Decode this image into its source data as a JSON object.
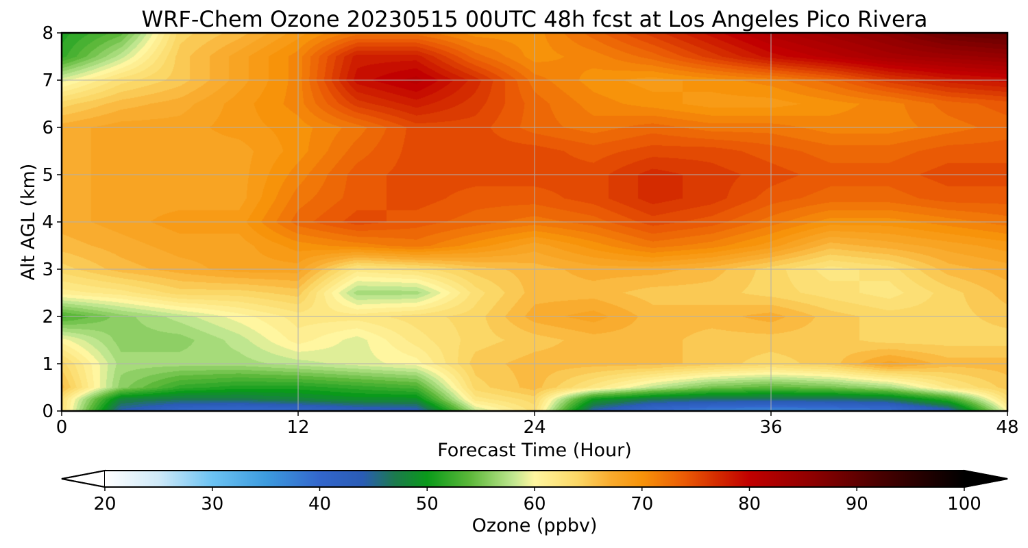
{
  "chart_data": {
    "type": "heatmap",
    "title": "WRF-Chem Ozone  20230515 00UTC 48h fcst at Los Angeles Pico Rivera",
    "xlabel": "Forecast Time (Hour)",
    "ylabel": "Alt AGL (km)",
    "xlim": [
      0,
      48
    ],
    "ylim": [
      0,
      8
    ],
    "xticks": [
      0,
      12,
      24,
      36,
      48
    ],
    "yticks": [
      0,
      1,
      2,
      3,
      4,
      5,
      6,
      7,
      8
    ],
    "grid": true,
    "x_hours": [
      0,
      3,
      6,
      9,
      12,
      15,
      18,
      21,
      24,
      27,
      30,
      33,
      36,
      39,
      42,
      45,
      48
    ],
    "y_km": [
      0,
      0.25,
      0.5,
      1,
      1.5,
      2,
      2.5,
      3,
      3.5,
      4,
      4.5,
      5,
      5.5,
      6,
      6.5,
      7,
      7.5,
      8
    ],
    "ozone_ppbv": [
      [
        63,
        44,
        40,
        39,
        40,
        42,
        43,
        58,
        63,
        44,
        39,
        37,
        36,
        37,
        38,
        43,
        60
      ],
      [
        63,
        48,
        47,
        47,
        48,
        49,
        49,
        62,
        64,
        50,
        47,
        46,
        46,
        46,
        47,
        52,
        63
      ],
      [
        66,
        56,
        52,
        51,
        51,
        52,
        53,
        64,
        66,
        62,
        58,
        55,
        54,
        55,
        57,
        62,
        65
      ],
      [
        64,
        57,
        57,
        57,
        58,
        59,
        60,
        65,
        66,
        66,
        66,
        65,
        64,
        65,
        68,
        66,
        66
      ],
      [
        60,
        56,
        56,
        58,
        61,
        59,
        62,
        64,
        65,
        66,
        66,
        65,
        65,
        65,
        64,
        64,
        64
      ],
      [
        53,
        56,
        58,
        60,
        62,
        62,
        63,
        64,
        67,
        68,
        66,
        66,
        67,
        65,
        64,
        64,
        65
      ],
      [
        61,
        62,
        64,
        64,
        65,
        57,
        57,
        63,
        66,
        66,
        65,
        65,
        64,
        63,
        62,
        64,
        66
      ],
      [
        64,
        66,
        67,
        68,
        68,
        62,
        63,
        65,
        66,
        67,
        67,
        66,
        64,
        62,
        63,
        66,
        67
      ],
      [
        66,
        67,
        68,
        68,
        70,
        71,
        72,
        70,
        68,
        70,
        72,
        71,
        69,
        66,
        67,
        68,
        69
      ],
      [
        67,
        68,
        69,
        69,
        73,
        75,
        74,
        73,
        72,
        73,
        75,
        74,
        72,
        70,
        70,
        71,
        72
      ],
      [
        67,
        68,
        68,
        68,
        72,
        74,
        75,
        74,
        74,
        75,
        77,
        76,
        74,
        73,
        73,
        74,
        74
      ],
      [
        67,
        68,
        68,
        68,
        71,
        74,
        75,
        75,
        75,
        75,
        77,
        76,
        75,
        74,
        74,
        75,
        75
      ],
      [
        67,
        68,
        68,
        68,
        70,
        73,
        75,
        75,
        75,
        74,
        75,
        75,
        74,
        73,
        73,
        74,
        74
      ],
      [
        67,
        68,
        68,
        69,
        70,
        72,
        75,
        75,
        73,
        72,
        73,
        72,
        72,
        71,
        71,
        72,
        73
      ],
      [
        64,
        66,
        67,
        69,
        71,
        76,
        78,
        76,
        73,
        71,
        70,
        69,
        69,
        70,
        71,
        73,
        74
      ],
      [
        59,
        63,
        65,
        68,
        71,
        79,
        81,
        77,
        72,
        70,
        69,
        70,
        71,
        73,
        76,
        78,
        79
      ],
      [
        52,
        58,
        65,
        68,
        71,
        78,
        78,
        73,
        70,
        71,
        73,
        76,
        79,
        81,
        83,
        84,
        85
      ],
      [
        51,
        54,
        64,
        66,
        69,
        72,
        72,
        70,
        70,
        73,
        76,
        79,
        82,
        84,
        86,
        89,
        90
      ]
    ]
  },
  "colorbar": {
    "label": "Ozone  (ppbv)",
    "min": 20,
    "max": 100,
    "ticks": [
      20,
      30,
      40,
      50,
      60,
      70,
      80,
      90,
      100
    ],
    "extend": "both",
    "color_stops": [
      [
        20,
        "#ffffff"
      ],
      [
        25,
        "#cfe9f8"
      ],
      [
        30,
        "#6cc3f3"
      ],
      [
        35,
        "#3d9bde"
      ],
      [
        40,
        "#3366cc"
      ],
      [
        44,
        "#2a5cb5"
      ],
      [
        47,
        "#1c7a4d"
      ],
      [
        50,
        "#0a9a1a"
      ],
      [
        54,
        "#5cb83a"
      ],
      [
        58,
        "#bfe68f"
      ],
      [
        60,
        "#fff6a0"
      ],
      [
        64,
        "#fbd766"
      ],
      [
        67,
        "#f9ac2f"
      ],
      [
        70,
        "#f7930a"
      ],
      [
        74,
        "#ea5a05"
      ],
      [
        77,
        "#d42b00"
      ],
      [
        80,
        "#c10000"
      ],
      [
        86,
        "#8c0000"
      ],
      [
        92,
        "#4a0000"
      ],
      [
        100,
        "#000000"
      ]
    ]
  }
}
